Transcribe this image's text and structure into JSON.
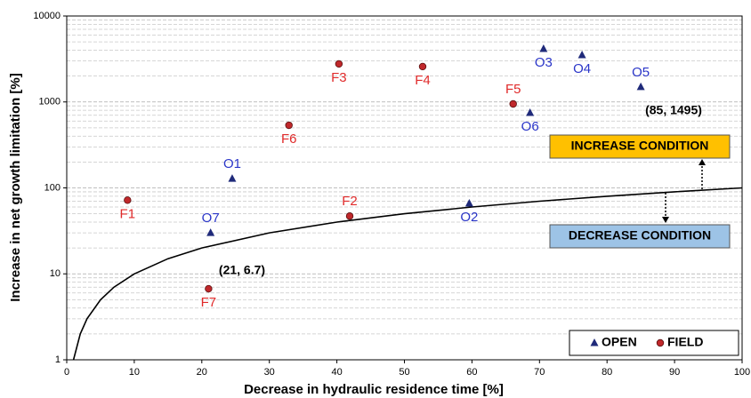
{
  "chart_data": {
    "type": "scatter",
    "xlabel": "Decrease in hydraulic residence time [%]",
    "ylabel": "Increase in net growth limitation [%]",
    "xlim": [
      0,
      100
    ],
    "xticks": [
      0,
      10,
      20,
      30,
      40,
      50,
      60,
      70,
      80,
      90,
      100
    ],
    "ylim": [
      1,
      10000
    ],
    "yticks": [
      1,
      10,
      100,
      1000,
      10000
    ],
    "log_y": true,
    "grid": true,
    "minor_grid": true,
    "legend": "lower right",
    "series": [
      {
        "name": "OPEN",
        "marker": "triangle",
        "color": "#1f2a7a",
        "label_color": "#2a35c8",
        "labels": [
          "O1",
          "O2",
          "O3",
          "O4",
          "O5",
          "O6",
          "O7"
        ],
        "x": [
          24.5,
          59.6,
          70.6,
          76.3,
          85,
          68.6,
          21.3
        ],
        "values": [
          128,
          66,
          4140,
          3510,
          1495,
          747,
          30
        ]
      },
      {
        "name": "FIELD",
        "marker": "circle",
        "color": "#c0282b",
        "label_color": "#e02a2a",
        "labels": [
          "F1",
          "F2",
          "F3",
          "F4",
          "F5",
          "F6",
          "F7"
        ],
        "x": [
          9.0,
          41.9,
          40.3,
          52.7,
          66.1,
          32.9,
          21
        ],
        "values": [
          72,
          47,
          2770,
          2580,
          948,
          535,
          6.7
        ]
      }
    ],
    "curve": {
      "color": "#000000",
      "x": [
        1,
        2,
        3,
        5,
        7,
        10,
        15,
        20,
        30,
        40,
        50,
        60,
        70,
        80,
        90,
        100
      ],
      "values": [
        1,
        2,
        3,
        5,
        7,
        10,
        15,
        20,
        30,
        40,
        50,
        60,
        70,
        80,
        90,
        100
      ]
    },
    "annotations": [
      "(85, 1495)",
      "(21, 6.7)",
      "INCREASE CONDITION",
      "DECREASE CONDITION"
    ]
  }
}
